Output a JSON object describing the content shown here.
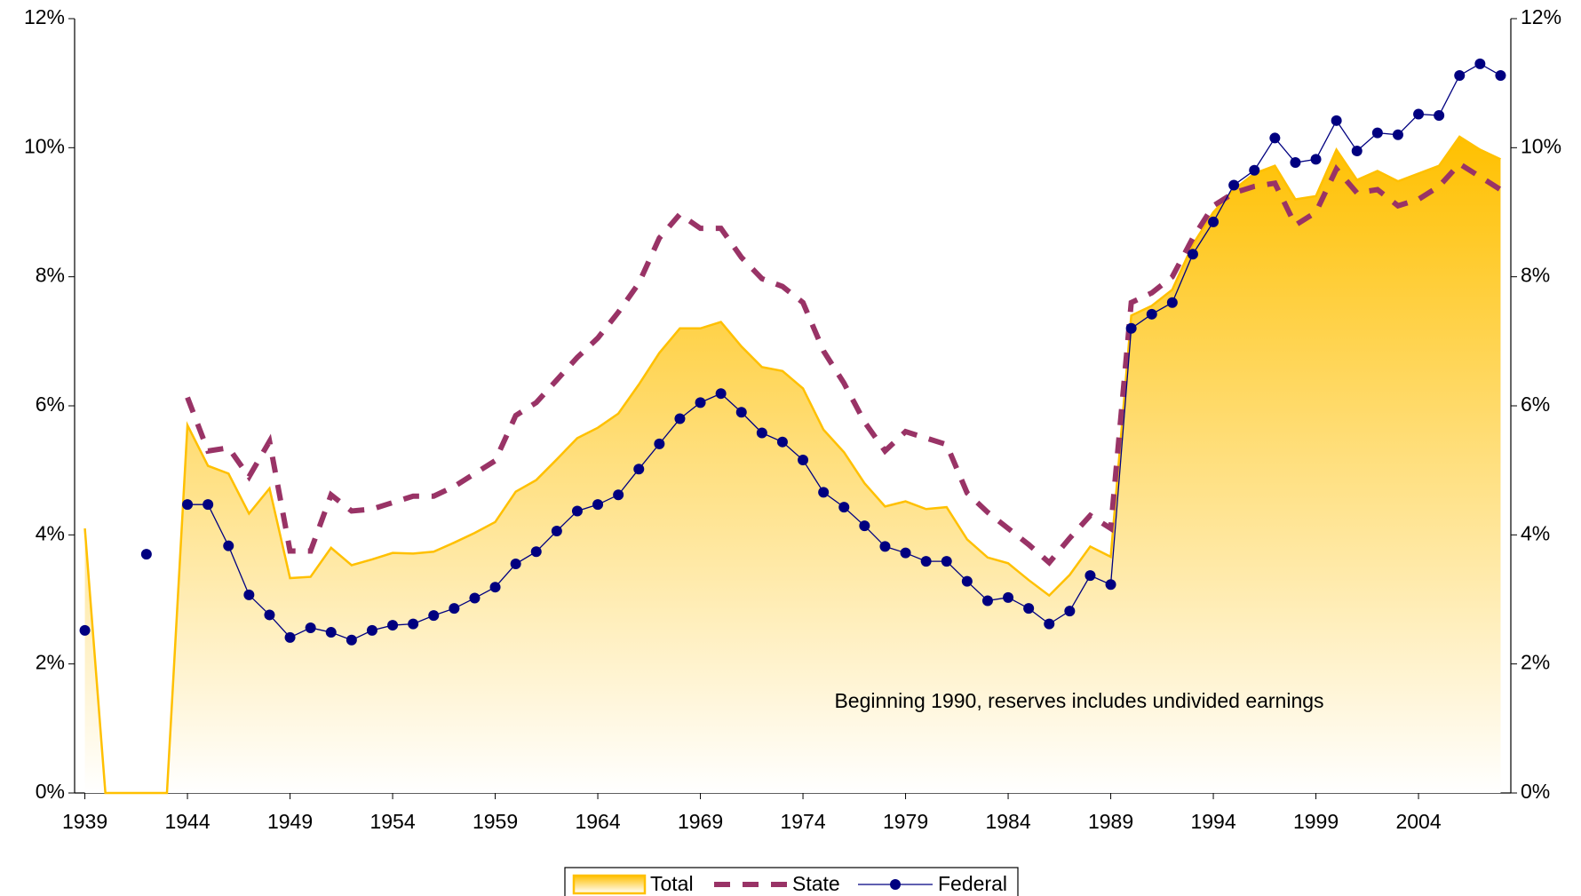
{
  "chart_data": {
    "type": "line",
    "annotation": "Beginning 1990, reserves includes undivided earnings",
    "x": [
      1939,
      1940,
      1941,
      1942,
      1943,
      1944,
      1945,
      1946,
      1947,
      1948,
      1949,
      1950,
      1951,
      1952,
      1953,
      1954,
      1955,
      1956,
      1957,
      1958,
      1959,
      1960,
      1961,
      1962,
      1963,
      1964,
      1965,
      1966,
      1967,
      1968,
      1969,
      1970,
      1971,
      1972,
      1973,
      1974,
      1975,
      1976,
      1977,
      1978,
      1979,
      1980,
      1981,
      1982,
      1983,
      1984,
      1985,
      1986,
      1987,
      1988,
      1989,
      1990,
      1991,
      1992,
      1993,
      1994,
      1995,
      1996,
      1997,
      1998,
      1999,
      2000,
      2001,
      2002,
      2003,
      2004,
      2005,
      2006,
      2007,
      2008
    ],
    "series": [
      {
        "name": "Total",
        "color": "#ffc000",
        "kind": "area",
        "values": [
          4.1,
          0,
          0,
          0,
          0,
          5.7,
          5.07,
          4.95,
          4.33,
          4.72,
          3.33,
          3.35,
          3.8,
          3.53,
          3.62,
          3.72,
          3.71,
          3.74,
          3.88,
          4.03,
          4.2,
          4.67,
          4.85,
          5.17,
          5.5,
          5.66,
          5.88,
          6.33,
          6.82,
          7.2,
          7.2,
          7.3,
          6.92,
          6.6,
          6.54,
          6.27,
          5.63,
          5.28,
          4.8,
          4.44,
          4.52,
          4.4,
          4.43,
          3.93,
          3.65,
          3.56,
          3.3,
          3.06,
          3.38,
          3.82,
          3.66,
          7.4,
          7.55,
          7.8,
          8.5,
          9.0,
          9.35,
          9.6,
          9.72,
          9.2,
          9.25,
          9.97,
          9.5,
          9.64,
          9.48,
          9.6,
          9.72,
          10.17,
          9.97,
          9.82
        ]
      },
      {
        "name": "State",
        "color": "#993366",
        "kind": "dashed",
        "values": [
          null,
          null,
          null,
          null,
          null,
          6.13,
          5.3,
          5.35,
          4.9,
          5.45,
          3.75,
          3.75,
          4.62,
          4.37,
          4.4,
          4.5,
          4.6,
          4.6,
          4.75,
          4.95,
          5.15,
          5.85,
          6.05,
          6.4,
          6.75,
          7.05,
          7.45,
          7.9,
          8.6,
          8.97,
          8.75,
          8.75,
          8.3,
          7.97,
          7.85,
          7.6,
          6.85,
          6.35,
          5.75,
          5.3,
          5.6,
          5.5,
          5.4,
          4.65,
          4.35,
          4.1,
          3.85,
          3.57,
          3.95,
          4.3,
          4.1,
          7.6,
          7.75,
          8.0,
          8.6,
          9.1,
          9.3,
          9.4,
          9.45,
          8.8,
          9.0,
          9.67,
          9.3,
          9.35,
          9.1,
          9.2,
          9.4,
          9.75,
          9.55,
          9.35
        ]
      },
      {
        "name": "Federal",
        "color": "#000080",
        "kind": "markers",
        "values": [
          2.52,
          null,
          null,
          3.7,
          null,
          4.47,
          4.47,
          3.83,
          3.07,
          2.76,
          2.41,
          2.56,
          2.49,
          2.37,
          2.52,
          2.6,
          2.62,
          2.75,
          2.86,
          3.02,
          3.19,
          3.55,
          3.74,
          4.06,
          4.37,
          4.47,
          4.62,
          5.02,
          5.41,
          5.8,
          6.05,
          6.19,
          5.9,
          5.58,
          5.44,
          5.16,
          4.66,
          4.43,
          4.14,
          3.82,
          3.72,
          3.59,
          3.59,
          3.28,
          2.98,
          3.03,
          2.86,
          2.62,
          2.82,
          3.37,
          3.23,
          7.2,
          7.42,
          7.6,
          8.35,
          8.85,
          9.42,
          9.65,
          10.15,
          9.77,
          9.82,
          10.42,
          9.95,
          10.23,
          10.2,
          10.52,
          10.5,
          11.12,
          11.3,
          11.12
        ]
      }
    ],
    "xlim": [
      1938.5,
      2008.5
    ],
    "xticks": [
      1939,
      1944,
      1949,
      1954,
      1959,
      1964,
      1969,
      1974,
      1979,
      1984,
      1989,
      1994,
      1999,
      2004
    ],
    "ylim": [
      0,
      12
    ],
    "yticks": [
      {
        "value": 0,
        "label": "0%"
      },
      {
        "value": 2,
        "label": "2%"
      },
      {
        "value": 4,
        "label": "4%"
      },
      {
        "value": 6,
        "label": "6%"
      },
      {
        "value": 8,
        "label": "8%"
      },
      {
        "value": 10,
        "label": "10%"
      },
      {
        "value": 12,
        "label": "12%"
      }
    ],
    "y2lim": [
      0,
      12
    ],
    "y2ticks": [
      {
        "value": 0,
        "label": "0%"
      },
      {
        "value": 2,
        "label": "2%"
      },
      {
        "value": 4,
        "label": "4%"
      },
      {
        "value": 6,
        "label": "6%"
      },
      {
        "value": 8,
        "label": "8%"
      },
      {
        "value": 10,
        "label": "10%"
      },
      {
        "value": 12,
        "label": "12%"
      }
    ],
    "legend": "bottom"
  }
}
